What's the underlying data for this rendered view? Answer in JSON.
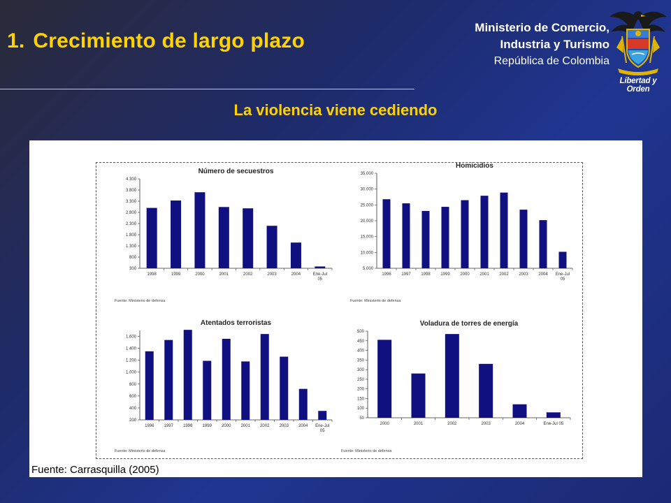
{
  "header": {
    "title_number": "1.",
    "title": "Crecimiento de largo plazo",
    "subtitle": "La violencia viene cediendo"
  },
  "ministry": {
    "line1": "Ministerio de Comercio,",
    "line2": "Industria y Turismo",
    "line3": "República de Colombia",
    "motto": "Libertad y Orden"
  },
  "panel": {
    "source": "Fuente: Carrasquilla (2005)"
  },
  "colors": {
    "title": "#ffd200",
    "bar": "#101080",
    "background": "#1f3590"
  },
  "chart_data": [
    {
      "type": "bar",
      "title": "Número de secuestros",
      "categories": [
        "1998",
        "1999",
        "2000",
        "2001",
        "2002",
        "2003",
        "2004",
        "Ene-Jul 05"
      ],
      "values": [
        3000,
        3330,
        3700,
        3040,
        2980,
        2200,
        1450,
        380
      ],
      "yticks": [
        "4.300",
        "3.800",
        "3.300",
        "2.800",
        "2.300",
        "1.800",
        "1.300",
        "800",
        "300"
      ],
      "ylim": [
        300,
        4300
      ],
      "source": "Fuente: Ministerio de defensa"
    },
    {
      "type": "bar",
      "title": "Homicidios",
      "categories": [
        "1996",
        "1997",
        "1998",
        "1999",
        "2000",
        "2001",
        "2002",
        "2003",
        "2004",
        "Ene-Jul 05"
      ],
      "values": [
        26800,
        25500,
        23100,
        24400,
        26500,
        27900,
        28900,
        23500,
        20200,
        10200
      ],
      "yticks": [
        "35.000",
        "30.000",
        "25.000",
        "20.000",
        "15.000",
        "10.000",
        "5.000"
      ],
      "ylim": [
        5000,
        35000
      ],
      "source": "Fuente: Ministerio de defensa"
    },
    {
      "type": "bar",
      "title": "Atentados terroristas",
      "categories": [
        "1996",
        "1997",
        "1998",
        "1999",
        "2000",
        "2001",
        "2002",
        "2003",
        "2004",
        "Ene-Jul 05"
      ],
      "values": [
        1350,
        1540,
        1710,
        1190,
        1560,
        1180,
        1640,
        1260,
        720,
        350
      ],
      "yticks": [
        "1.600",
        "1.400",
        "1.200",
        "1.000",
        "800",
        "600",
        "400",
        "200"
      ],
      "ylim": [
        200,
        1700
      ],
      "source": "Fuente: Ministerio de defensa"
    },
    {
      "type": "bar",
      "title": "Voladura de torres de energía",
      "categories": [
        "2000",
        "2001",
        "2002",
        "2003",
        "2004",
        "Ene-Jul 05"
      ],
      "values": [
        455,
        280,
        485,
        330,
        120,
        78
      ],
      "yticks": [
        "500",
        "450",
        "400",
        "350",
        "300",
        "250",
        "200",
        "150",
        "100",
        "50"
      ],
      "ylim": [
        50,
        500
      ],
      "source": "Fuente: Ministerio de defensa"
    }
  ]
}
